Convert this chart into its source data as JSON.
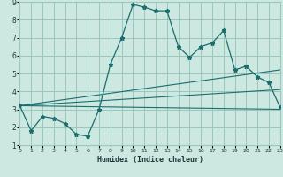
{
  "xlabel": "Humidex (Indice chaleur)",
  "bg_color": "#cce8e0",
  "grid_color": "#9ac8bc",
  "line_color": "#1a6e6e",
  "xlim": [
    0,
    23
  ],
  "ylim": [
    1,
    9
  ],
  "xticks": [
    0,
    1,
    2,
    3,
    4,
    5,
    6,
    7,
    8,
    9,
    10,
    11,
    12,
    13,
    14,
    15,
    16,
    17,
    18,
    19,
    20,
    21,
    22,
    23
  ],
  "yticks": [
    1,
    2,
    3,
    4,
    5,
    6,
    7,
    8,
    9
  ],
  "series1_x": [
    0,
    1,
    2,
    3,
    4,
    5,
    6,
    7,
    8,
    9,
    10,
    11,
    12,
    13,
    14,
    15,
    16,
    17,
    18,
    19,
    20,
    21,
    22,
    23
  ],
  "series1_y": [
    3.2,
    1.8,
    2.6,
    2.5,
    2.2,
    1.6,
    1.5,
    3.0,
    5.5,
    7.0,
    8.85,
    8.7,
    8.5,
    8.5,
    6.5,
    5.9,
    6.5,
    6.7,
    7.4,
    5.2,
    5.4,
    4.8,
    4.5,
    3.1
  ],
  "line2_x": [
    0,
    23
  ],
  "line2_y": [
    3.2,
    3.0
  ],
  "line3_x": [
    0,
    23
  ],
  "line3_y": [
    3.2,
    3.0
  ],
  "line4_x": [
    0,
    23
  ],
  "line4_y": [
    3.2,
    3.0
  ],
  "fan_lines": [
    {
      "x": [
        0,
        23
      ],
      "y": [
        3.2,
        5.2
      ]
    },
    {
      "x": [
        0,
        23
      ],
      "y": [
        3.2,
        4.1
      ]
    },
    {
      "x": [
        0,
        23
      ],
      "y": [
        3.2,
        3.0
      ]
    }
  ]
}
